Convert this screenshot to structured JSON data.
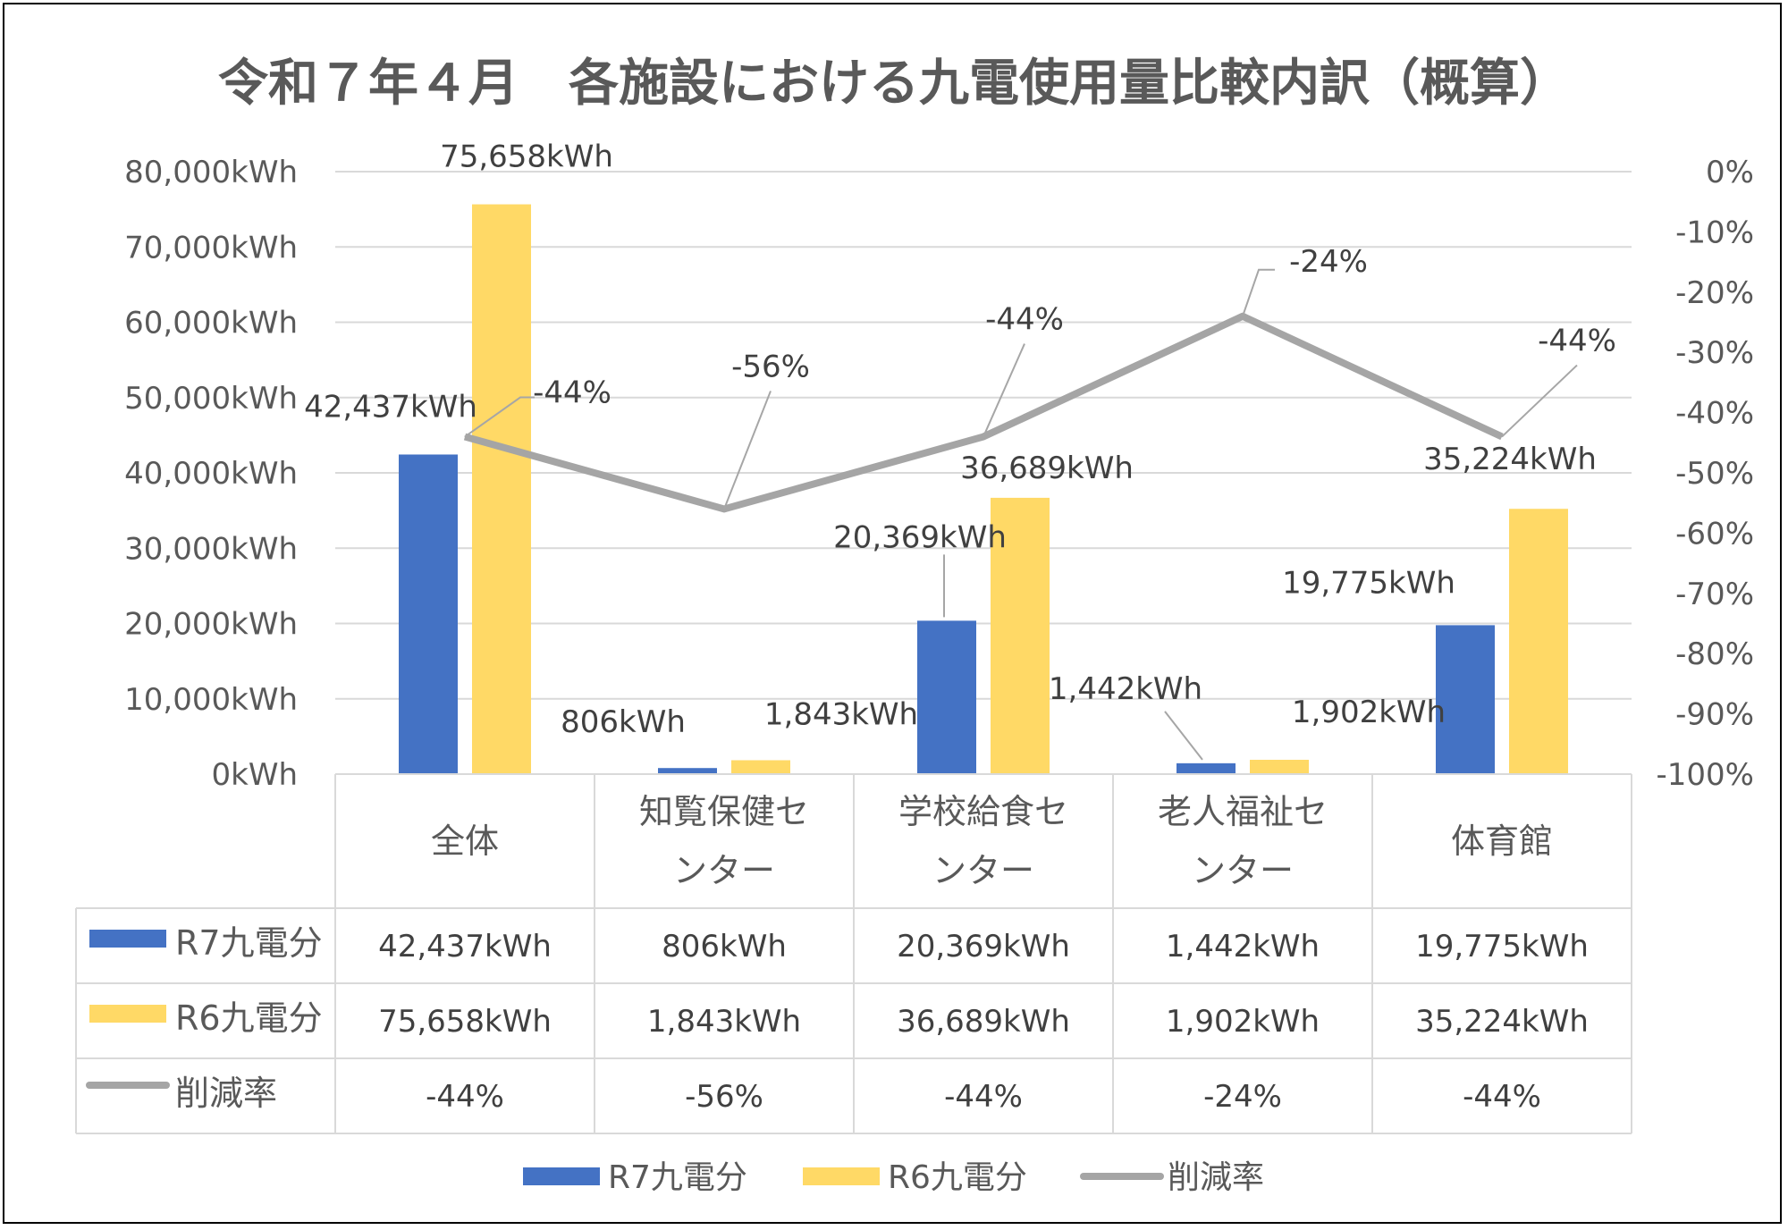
{
  "chart_data": {
    "type": "bar",
    "title": "令和７年４月　各施設における九電使用量比較内訳（概算）",
    "categories": [
      [
        "全体"
      ],
      [
        "知覧保健セ",
        "ンター"
      ],
      [
        "学校給食セ",
        "ンター"
      ],
      [
        "老人福祉セ",
        "ンター"
      ],
      [
        "体育館"
      ]
    ],
    "series": [
      {
        "name": "R7九電分",
        "color": "#4472C4",
        "values": [
          42437,
          806,
          20369,
          1442,
          19775
        ],
        "labels": [
          "42,437kWh",
          "806kWh",
          "20,369kWh",
          "1,442kWh",
          "19,775kWh"
        ]
      },
      {
        "name": "R6九電分",
        "color": "#FFD966",
        "values": [
          75658,
          1843,
          36689,
          1902,
          35224
        ],
        "labels": [
          "75,658kWh",
          "1,843kWh",
          "36,689kWh",
          "1,902kWh",
          "35,224kWh"
        ]
      }
    ],
    "line_series": {
      "name": "削減率",
      "color": "#A5A5A5",
      "axis": "right",
      "values": [
        -44,
        -56,
        -44,
        -24,
        -44
      ],
      "labels": [
        "-44%",
        "-56%",
        "-44%",
        "-24%",
        "-44%"
      ]
    },
    "y_left": {
      "min": 0,
      "max": 80000,
      "step": 10000,
      "ticks": [
        "0kWh",
        "10,000kWh",
        "20,000kWh",
        "30,000kWh",
        "40,000kWh",
        "50,000kWh",
        "60,000kWh",
        "70,000kWh",
        "80,000kWh"
      ]
    },
    "y_right": {
      "min": -100,
      "max": 0,
      "step": 10,
      "ticks": [
        "-100%",
        "-90%",
        "-80%",
        "-70%",
        "-60%",
        "-50%",
        "-40%",
        "-30%",
        "-20%",
        "-10%",
        "0%"
      ]
    },
    "grid": true,
    "legend_position": "bottom",
    "data_table": true
  }
}
